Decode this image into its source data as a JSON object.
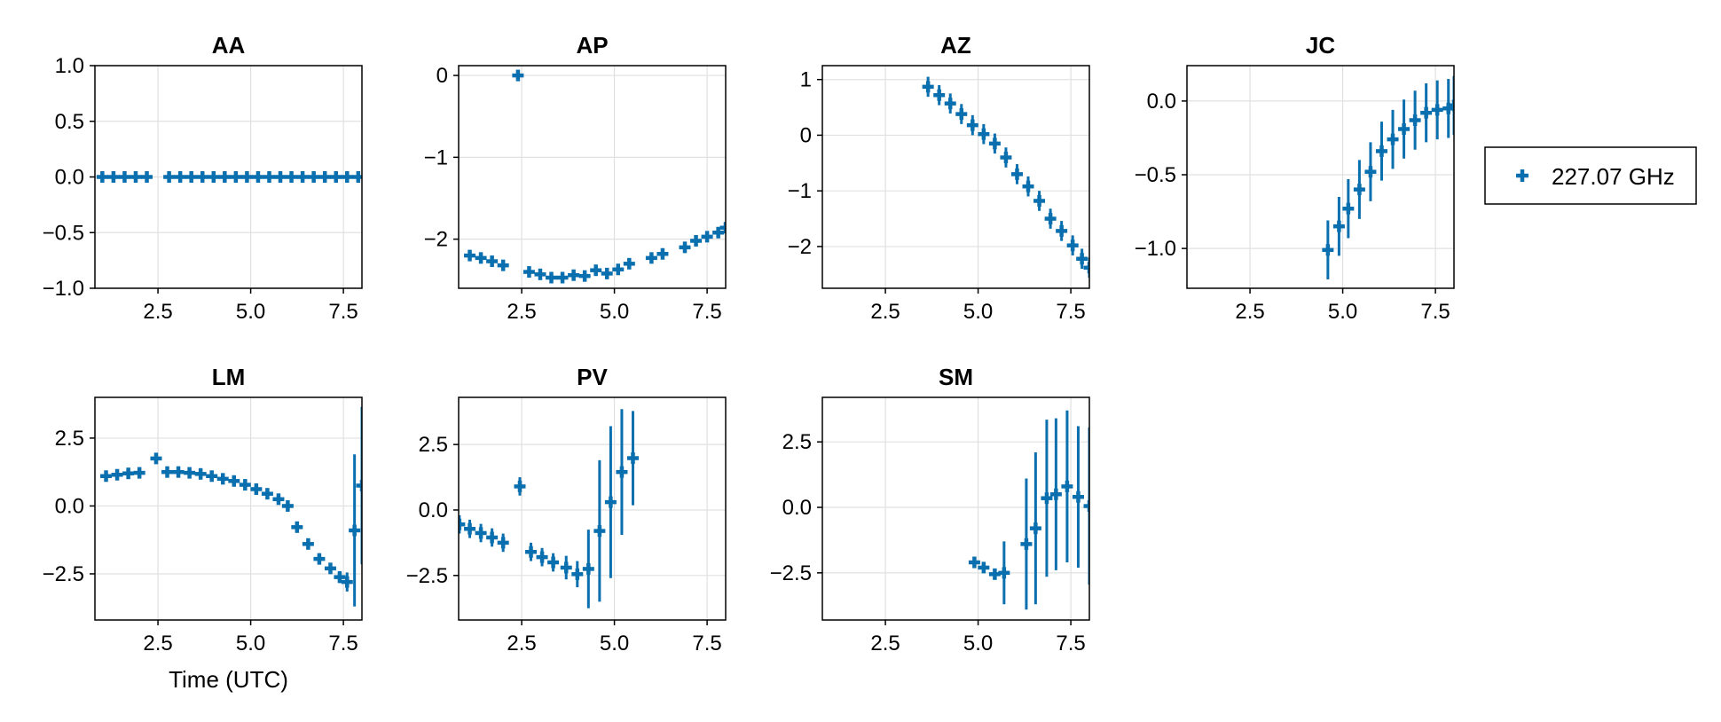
{
  "colors": {
    "series": "#0a6fae",
    "grid": "#e0e0e0",
    "frame": "#000000"
  },
  "legend": {
    "label": "227.07 GHz",
    "position": "right",
    "marker": "cross"
  },
  "chart_data": [
    {
      "type": "scatter",
      "title": "AA",
      "xlabel": "",
      "xlim": [
        0.8,
        8.0
      ],
      "ylim": [
        -1.0,
        1.0
      ],
      "xticks": [
        "2.5",
        "5.0",
        "7.5"
      ],
      "yticks": [
        "1.0",
        "0.5",
        "0.0",
        "−0.5",
        "−1.0"
      ],
      "xtick_values": [
        2.5,
        5.0,
        7.5
      ],
      "ytick_values": [
        1.0,
        0.5,
        0.0,
        -0.5,
        -1.0
      ],
      "series": [
        {
          "name": "227.07 GHz",
          "points": [
            [
              1.0,
              0,
              0
            ],
            [
              1.3,
              0,
              0
            ],
            [
              1.6,
              0,
              0
            ],
            [
              1.9,
              0,
              0
            ],
            [
              2.2,
              0,
              0
            ],
            [
              2.8,
              0,
              0
            ],
            [
              3.1,
              0,
              0
            ],
            [
              3.4,
              0,
              0
            ],
            [
              3.7,
              0,
              0
            ],
            [
              4.0,
              0,
              0
            ],
            [
              4.3,
              0,
              0
            ],
            [
              4.6,
              0,
              0
            ],
            [
              4.9,
              0,
              0
            ],
            [
              5.2,
              0,
              0
            ],
            [
              5.5,
              0,
              0
            ],
            [
              5.8,
              0,
              0
            ],
            [
              6.1,
              0,
              0
            ],
            [
              6.4,
              0,
              0
            ],
            [
              6.7,
              0,
              0
            ],
            [
              7.0,
              0,
              0
            ],
            [
              7.3,
              0,
              0
            ],
            [
              7.6,
              0,
              0
            ],
            [
              7.9,
              0,
              0
            ]
          ]
        }
      ]
    },
    {
      "type": "scatter",
      "title": "AP",
      "xlabel": "",
      "xlim": [
        0.8,
        8.0
      ],
      "ylim": [
        -2.6,
        0.12
      ],
      "xticks": [
        "2.5",
        "5.0",
        "7.5"
      ],
      "yticks": [
        "0",
        "−1",
        "−2"
      ],
      "xtick_values": [
        2.5,
        5.0,
        7.5
      ],
      "ytick_values": [
        0,
        -1,
        -2
      ],
      "series": [
        {
          "name": "227.07 GHz",
          "points": [
            [
              1.1,
              -2.2,
              0
            ],
            [
              1.4,
              -2.23,
              0
            ],
            [
              1.7,
              -2.27,
              0
            ],
            [
              2.0,
              -2.32,
              0
            ],
            [
              2.4,
              0.0,
              0
            ],
            [
              2.7,
              -2.4,
              0
            ],
            [
              3.0,
              -2.43,
              0
            ],
            [
              3.3,
              -2.47,
              0
            ],
            [
              3.6,
              -2.47,
              0
            ],
            [
              3.9,
              -2.44,
              0
            ],
            [
              4.2,
              -2.45,
              0
            ],
            [
              4.5,
              -2.38,
              0
            ],
            [
              4.8,
              -2.42,
              0
            ],
            [
              5.1,
              -2.37,
              0
            ],
            [
              5.4,
              -2.3,
              0
            ],
            [
              6.0,
              -2.23,
              0
            ],
            [
              6.3,
              -2.18,
              0
            ],
            [
              6.9,
              -2.1,
              0
            ],
            [
              7.2,
              -2.02,
              0
            ],
            [
              7.5,
              -1.97,
              0
            ],
            [
              7.8,
              -1.92,
              0
            ],
            [
              8.0,
              -1.86,
              0
            ]
          ]
        }
      ]
    },
    {
      "type": "scatter",
      "title": "AZ",
      "xlabel": "",
      "xlim": [
        0.8,
        8.0
      ],
      "ylim": [
        -2.75,
        1.25
      ],
      "xticks": [
        "2.5",
        "5.0",
        "7.5"
      ],
      "yticks": [
        "1",
        "0",
        "−1",
        "−2"
      ],
      "xtick_values": [
        2.5,
        5.0,
        7.5
      ],
      "ytick_values": [
        1,
        0,
        -1,
        -2
      ],
      "series": [
        {
          "name": "227.07 GHz",
          "points": [
            [
              3.65,
              0.87,
              0.18
            ],
            [
              3.95,
              0.72,
              0.18
            ],
            [
              4.25,
              0.57,
              0.18
            ],
            [
              4.55,
              0.38,
              0.18
            ],
            [
              4.85,
              0.18,
              0.18
            ],
            [
              5.15,
              0.02,
              0.18
            ],
            [
              5.45,
              -0.15,
              0.18
            ],
            [
              5.75,
              -0.4,
              0.18
            ],
            [
              6.05,
              -0.7,
              0.18
            ],
            [
              6.35,
              -0.92,
              0.18
            ],
            [
              6.65,
              -1.18,
              0.18
            ],
            [
              6.95,
              -1.5,
              0.18
            ],
            [
              7.25,
              -1.72,
              0.18
            ],
            [
              7.55,
              -1.98,
              0.18
            ],
            [
              7.8,
              -2.22,
              0.18
            ],
            [
              8.0,
              -2.38,
              0.18
            ]
          ]
        }
      ]
    },
    {
      "type": "scatter",
      "title": "JC",
      "xlabel": "",
      "xlim": [
        0.8,
        8.0
      ],
      "ylim": [
        -1.27,
        0.24
      ],
      "xticks": [
        "2.5",
        "5.0",
        "7.5"
      ],
      "yticks": [
        "0.0",
        "−0.5",
        "−1.0"
      ],
      "xtick_values": [
        2.5,
        5.0,
        7.5
      ],
      "ytick_values": [
        0.0,
        -0.5,
        -1.0
      ],
      "series": [
        {
          "name": "227.07 GHz",
          "points": [
            [
              4.6,
              -1.01,
              0.2
            ],
            [
              4.9,
              -0.85,
              0.2
            ],
            [
              5.15,
              -0.73,
              0.2
            ],
            [
              5.45,
              -0.6,
              0.2
            ],
            [
              5.75,
              -0.48,
              0.2
            ],
            [
              6.05,
              -0.34,
              0.2
            ],
            [
              6.35,
              -0.26,
              0.2
            ],
            [
              6.65,
              -0.19,
              0.2
            ],
            [
              6.95,
              -0.13,
              0.2
            ],
            [
              7.25,
              -0.08,
              0.2
            ],
            [
              7.55,
              -0.06,
              0.2
            ],
            [
              7.85,
              -0.05,
              0.2
            ],
            [
              8.0,
              -0.03,
              0.2
            ]
          ]
        }
      ]
    },
    {
      "type": "scatter",
      "title": "LM",
      "xlabel": "Time (UTC)",
      "xlim": [
        0.8,
        8.0
      ],
      "ylim": [
        -4.2,
        4.0
      ],
      "xticks": [
        "2.5",
        "5.0",
        "7.5"
      ],
      "yticks": [
        "2.5",
        "0.0",
        "−2.5"
      ],
      "xtick_values": [
        2.5,
        5.0,
        7.5
      ],
      "ytick_values": [
        2.5,
        0.0,
        -2.5
      ],
      "series": [
        {
          "name": "227.07 GHz",
          "points": [
            [
              1.1,
              1.1,
              0
            ],
            [
              1.4,
              1.15,
              0
            ],
            [
              1.7,
              1.2,
              0
            ],
            [
              2.0,
              1.22,
              0
            ],
            [
              2.45,
              1.75,
              0
            ],
            [
              2.75,
              1.25,
              0
            ],
            [
              3.05,
              1.25,
              0
            ],
            [
              3.35,
              1.22,
              0
            ],
            [
              3.65,
              1.18,
              0
            ],
            [
              3.95,
              1.1,
              0
            ],
            [
              4.25,
              1.0,
              0
            ],
            [
              4.55,
              0.92,
              0
            ],
            [
              4.85,
              0.78,
              0
            ],
            [
              5.15,
              0.62,
              0
            ],
            [
              5.45,
              0.45,
              0
            ],
            [
              5.75,
              0.25,
              0
            ],
            [
              6.0,
              0.0,
              0
            ],
            [
              6.25,
              -0.78,
              0
            ],
            [
              6.55,
              -1.4,
              0
            ],
            [
              6.85,
              -1.95,
              0
            ],
            [
              7.15,
              -2.3,
              0
            ],
            [
              7.4,
              -2.62,
              0.22
            ],
            [
              7.6,
              -2.8,
              0.35
            ],
            [
              7.8,
              -0.9,
              2.8
            ],
            [
              8.0,
              0.75,
              2.9
            ]
          ]
        }
      ]
    },
    {
      "type": "scatter",
      "title": "PV",
      "xlabel": "",
      "xlim": [
        0.8,
        8.0
      ],
      "ylim": [
        -4.2,
        4.3
      ],
      "xticks": [
        "2.5",
        "5.0",
        "7.5"
      ],
      "yticks": [
        "2.5",
        "0.0",
        "−2.5"
      ],
      "xtick_values": [
        2.5,
        5.0,
        7.5
      ],
      "ytick_values": [
        2.5,
        0.0,
        -2.5
      ],
      "series": [
        {
          "name": "227.07 GHz",
          "points": [
            [
              0.82,
              -0.55,
              0.35
            ],
            [
              1.1,
              -0.72,
              0.35
            ],
            [
              1.4,
              -0.88,
              0.35
            ],
            [
              1.7,
              -1.05,
              0.35
            ],
            [
              2.0,
              -1.25,
              0.35
            ],
            [
              2.45,
              0.9,
              0.35
            ],
            [
              2.75,
              -1.6,
              0.35
            ],
            [
              3.05,
              -1.8,
              0.35
            ],
            [
              3.35,
              -2.0,
              0.35
            ],
            [
              3.7,
              -2.2,
              0.45
            ],
            [
              4.0,
              -2.45,
              0.5
            ],
            [
              4.3,
              -2.25,
              1.5
            ],
            [
              4.6,
              -0.8,
              2.7
            ],
            [
              4.9,
              0.3,
              2.9
            ],
            [
              5.2,
              1.45,
              2.4
            ],
            [
              5.5,
              1.98,
              1.8
            ]
          ]
        }
      ]
    },
    {
      "type": "scatter",
      "title": "SM",
      "xlabel": "",
      "xlim": [
        0.8,
        8.0
      ],
      "ylim": [
        -4.3,
        4.2
      ],
      "xticks": [
        "2.5",
        "5.0",
        "7.5"
      ],
      "yticks": [
        "2.5",
        "0.0",
        "−2.5"
      ],
      "xtick_values": [
        2.5,
        5.0,
        7.5
      ],
      "ytick_values": [
        2.5,
        0.0,
        -2.5
      ],
      "series": [
        {
          "name": "227.07 GHz",
          "points": [
            [
              4.9,
              -2.1,
              0.15
            ],
            [
              5.15,
              -2.3,
              0.15
            ],
            [
              5.45,
              -2.55,
              0.2
            ],
            [
              5.7,
              -2.5,
              1.2
            ],
            [
              6.3,
              -1.4,
              2.5
            ],
            [
              6.55,
              -0.8,
              2.9
            ],
            [
              6.85,
              0.35,
              3.0
            ],
            [
              7.1,
              0.5,
              2.9
            ],
            [
              7.4,
              0.8,
              2.9
            ],
            [
              7.7,
              0.4,
              2.7
            ],
            [
              8.0,
              0.05,
              3.0
            ]
          ]
        }
      ]
    }
  ]
}
